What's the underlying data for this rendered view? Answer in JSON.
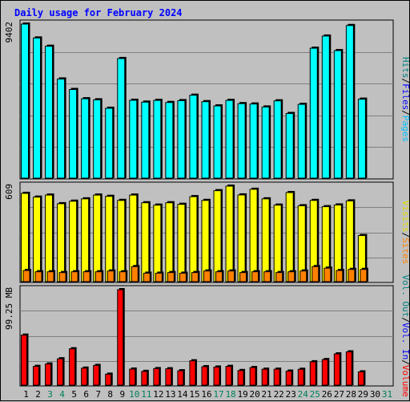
{
  "chart_data": {
    "type": "bar",
    "title": "Daily usage for February 2024",
    "categories": [
      "1",
      "2",
      "3",
      "4",
      "5",
      "6",
      "7",
      "8",
      "9",
      "10",
      "11",
      "12",
      "13",
      "14",
      "15",
      "16",
      "17",
      "18",
      "19",
      "20",
      "21",
      "22",
      "23",
      "24",
      "25",
      "26",
      "27",
      "28",
      "29",
      "30",
      "31"
    ],
    "weekend_days": [
      3,
      4,
      10,
      11,
      17,
      18,
      24,
      25,
      31
    ],
    "panels": [
      {
        "id": "hits",
        "max_label": "9402",
        "ymax": 9402,
        "ylim": [
          0,
          9402
        ],
        "series": [
          {
            "name": "Hits",
            "color": "#00ffff",
            "values": [
              9402,
              8553,
              8048,
              6050,
              5410,
              4845,
              4779,
              4264,
              7299,
              4752,
              4638,
              4745,
              4616,
              4730,
              5060,
              4666,
              4408,
              4745,
              4545,
              4524,
              4341,
              4717,
              3946,
              4502,
              7929,
              8671,
              7783,
              9315,
              4818,
              null,
              null
            ]
          },
          {
            "name": "Files",
            "color": "#0080ff",
            "values": [
              null,
              null,
              null,
              null,
              null,
              null,
              null,
              null,
              null,
              null,
              null,
              null,
              null,
              null,
              null,
              null,
              null,
              null,
              null,
              null,
              null,
              null,
              null,
              null,
              null,
              null,
              null,
              null,
              null,
              null,
              null
            ]
          },
          {
            "name": "Pages",
            "color": "#00c0ff",
            "values": [
              null,
              null,
              null,
              null,
              null,
              null,
              null,
              null,
              null,
              null,
              null,
              null,
              null,
              null,
              null,
              null,
              null,
              null,
              null,
              null,
              null,
              null,
              null,
              null,
              null,
              null,
              null,
              null,
              null,
              null,
              null
            ]
          }
        ]
      },
      {
        "id": "visits",
        "max_label": "609",
        "ymax": 609,
        "ylim": [
          0,
          609
        ],
        "series": [
          {
            "name": "Visits",
            "color": "#ffff00",
            "values": [
              563,
              539,
              552,
              497,
              513,
              528,
              552,
              544,
              518,
              552,
              503,
              488,
              503,
              493,
              542,
              518,
              580,
              609,
              553,
              589,
              528,
              488,
              568,
              484,
              518,
              478,
              489,
              515,
              294,
              null,
              null
            ]
          },
          {
            "name": "Sites",
            "color": "#ff8000",
            "values": [
              71,
              63,
              63,
              58,
              63,
              63,
              63,
              68,
              63,
              96,
              54,
              54,
              58,
              54,
              58,
              68,
              63,
              68,
              58,
              63,
              63,
              58,
              63,
              68,
              96,
              86,
              71,
              78,
              78,
              null,
              null
            ]
          }
        ]
      },
      {
        "id": "volume",
        "max_label": "99.25 MB",
        "ymax": 99.25,
        "ylim": [
          0,
          99.25
        ],
        "series": [
          {
            "name": "Volume",
            "color": "#ff0000",
            "values": [
              52.0,
              19.5,
              22.0,
              27.4,
              37.8,
              17.7,
              20.5,
              11.4,
              99.25,
              16.7,
              14.3,
              17.2,
              17.0,
              15.0,
              25.3,
              19.2,
              18.8,
              19.5,
              15.2,
              18.3,
              16.6,
              16.6,
              14.6,
              16.5,
              24.3,
              26.6,
              32.5,
              34.6,
              13.8,
              null,
              null
            ]
          },
          {
            "name": "Vol. In",
            "color": "#0000ff",
            "values": [
              null,
              null,
              null,
              null,
              null,
              null,
              null,
              null,
              null,
              null,
              null,
              null,
              null,
              null,
              null,
              null,
              null,
              null,
              null,
              null,
              null,
              null,
              null,
              null,
              null,
              null,
              null,
              null,
              null,
              null,
              null
            ]
          },
          {
            "name": "Vol. Out",
            "color": "#008080",
            "values": [
              null,
              null,
              null,
              null,
              null,
              null,
              null,
              null,
              null,
              null,
              null,
              null,
              null,
              null,
              null,
              null,
              null,
              null,
              null,
              null,
              null,
              null,
              null,
              null,
              null,
              null,
              null,
              null,
              null,
              null,
              null
            ]
          }
        ]
      }
    ],
    "legends": {
      "hits": [
        {
          "text": "Hits",
          "color": "#008080"
        },
        {
          "text": "Files",
          "color": "#0000ff"
        },
        {
          "text": "Pages",
          "color": "#00c0ff"
        }
      ],
      "visits": [
        {
          "text": "Visits",
          "color": "#e0e000"
        },
        {
          "text": "Sites",
          "color": "#ff8000"
        }
      ],
      "volume": [
        {
          "text": "Vol. Out",
          "color": "#008080"
        },
        {
          "text": "Vol. In",
          "color": "#0000ff"
        },
        {
          "text": "Volume",
          "color": "#ff0000"
        }
      ]
    },
    "legend_separator": "/",
    "grid": true,
    "colors": {
      "background": "#c0c0c0",
      "title": "#0000ff",
      "grid": "#808080",
      "weekday_label": "#000000",
      "weekend_label": "#00805c"
    }
  }
}
